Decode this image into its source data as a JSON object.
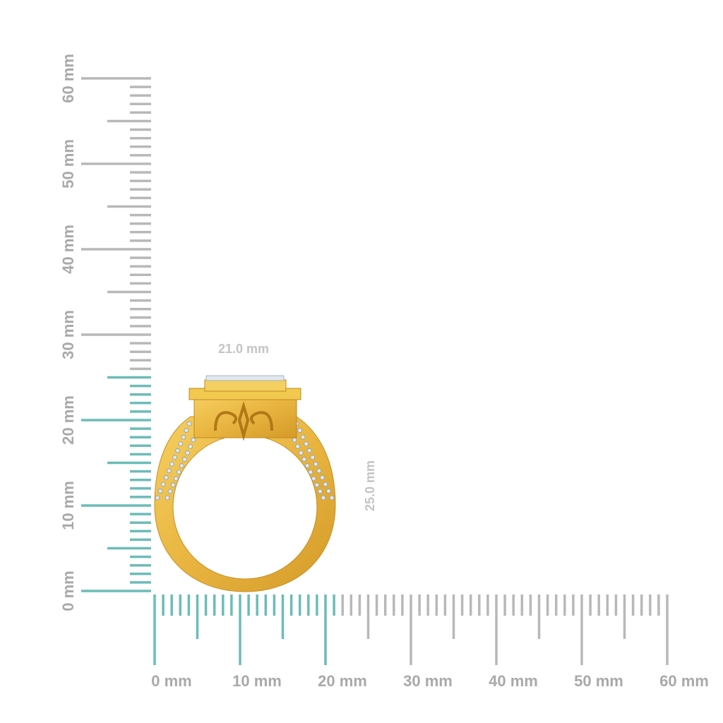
{
  "rulers": {
    "unit": "mm",
    "horizontal": {
      "labels": [
        "0 mm",
        "10 mm",
        "20 mm",
        "30 mm",
        "40 mm",
        "50 mm",
        "60 mm"
      ],
      "max_mm": 60,
      "highlighted_mm": 21
    },
    "vertical": {
      "labels": [
        "0 mm",
        "10 mm",
        "20 mm",
        "30 mm",
        "40 mm",
        "50 mm",
        "60 mm"
      ],
      "max_mm": 60,
      "highlighted_mm": 25
    },
    "colors": {
      "highlight": "#6cbcb8",
      "normal": "#b8b8b8",
      "label": "#a9a9a9"
    }
  },
  "measurements": {
    "width": "21.0 mm",
    "height": "25.0 mm"
  },
  "product": {
    "name": "gold-halo-ring",
    "metal_color": "#e8b43c",
    "stone_color": "#dfe6ee"
  }
}
